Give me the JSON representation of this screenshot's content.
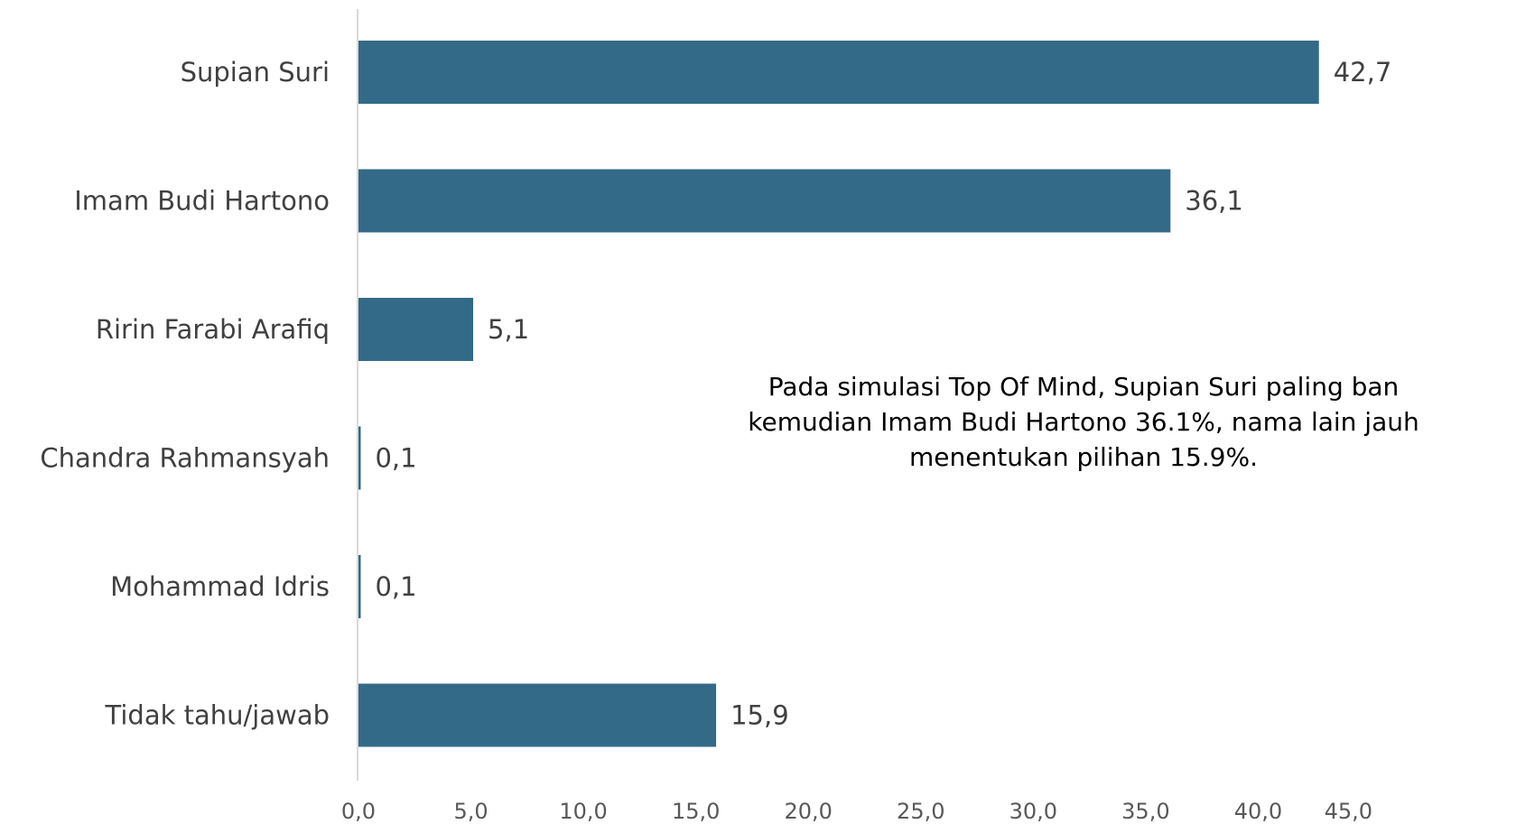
{
  "colors": {
    "bar": "#336a87",
    "axis": "#d9d9d9",
    "text": "#404040"
  },
  "annotation": {
    "line1": "Pada simulasi Top Of Mind, Supian Suri paling ban",
    "line2": "kemudian Imam Budi Hartono 36.1%, nama lain jauh",
    "line3": "menentukan pilihan 15.9%."
  },
  "chart_data": {
    "type": "bar",
    "orientation": "horizontal",
    "categories": [
      "Supian Suri",
      "Imam Budi Hartono",
      "Ririn Farabi Arafiq",
      "Chandra Rahmansyah",
      "Mohammad Idris",
      "Tidak tahu/jawab"
    ],
    "values": [
      42.7,
      36.1,
      5.1,
      0.1,
      0.1,
      15.9
    ],
    "value_labels": [
      "42,7",
      "36,1",
      "5,1",
      "0,1",
      "0,1",
      "15,9"
    ],
    "xlim": [
      0,
      45
    ],
    "xticks": [
      "0,0",
      "5,0",
      "10,0",
      "15,0",
      "20,0",
      "25,0",
      "30,0",
      "35,0",
      "40,0",
      "45,0"
    ],
    "title": "",
    "xlabel": "",
    "ylabel": "",
    "grid": false,
    "legend": "none"
  }
}
